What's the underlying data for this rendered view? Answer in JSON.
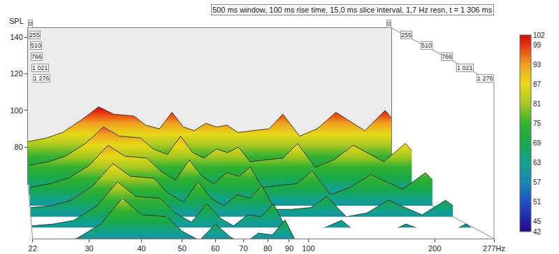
{
  "chart_data": {
    "type": "waterfall",
    "title": "500 ms window, 100 ms rise time, 15,0 ms slice interval, 1,7 Hz resn, t = 1 306 ms",
    "y_label": "SPL",
    "log": "x",
    "grid": false,
    "x": [
      22,
      25,
      28,
      32,
      36,
      40,
      46,
      50,
      55,
      60,
      65,
      70,
      76,
      82,
      88,
      95,
      105,
      118,
      130,
      146,
      165,
      188,
      230,
      265,
      277
    ],
    "xlim": [
      22,
      277
    ],
    "xticks": [
      22,
      30,
      40,
      50,
      60,
      70,
      80,
      90,
      100,
      200,
      {
        "value": 277,
        "label": "277Hz"
      }
    ],
    "ylim": [
      60,
      145
    ],
    "yticks": [
      80,
      100,
      120,
      140
    ],
    "zlim": [
      0,
      1276
    ],
    "zticks": [
      0,
      255,
      510,
      766,
      {
        "value": 1021,
        "label": "1 021"
      },
      {
        "value": 1276,
        "label": "1 276"
      }
    ],
    "clim": [
      42,
      102
    ],
    "cticks": [
      42,
      45,
      51,
      57,
      63,
      69,
      75,
      81,
      87,
      93,
      99,
      102
    ],
    "slices": [
      {
        "t": 0,
        "values": [
          83,
          85,
          88,
          95,
          102,
          98,
          97,
          92,
          90,
          99,
          91,
          89,
          93,
          91,
          92,
          88,
          89,
          90,
          98,
          86,
          90,
          99,
          89,
          100,
          96
        ]
      },
      {
        "t": 255,
        "values": [
          76,
          78,
          81,
          88,
          97,
          92,
          91,
          85,
          82,
          92,
          83,
          80,
          85,
          83,
          86,
          78,
          79,
          80,
          88,
          75,
          79,
          87,
          78,
          88,
          84
        ]
      },
      {
        "t": 510,
        "values": [
          70,
          72,
          75,
          82,
          93,
          87,
          86,
          79,
          74,
          85,
          76,
          72,
          78,
          76,
          81,
          70,
          71,
          72,
          79,
          66,
          70,
          77,
          69,
          78,
          74
        ]
      },
      {
        "t": 766,
        "values": [
          65,
          66,
          69,
          77,
          89,
          82,
          81,
          73,
          68,
          79,
          70,
          66,
          72,
          70,
          77,
          64,
          64,
          65,
          71,
          60,
          62,
          69,
          61,
          69,
          66
        ]
      },
      {
        "t": 1021,
        "values": [
          61,
          62,
          64,
          72,
          85,
          77,
          76,
          68,
          63,
          73,
          65,
          61,
          67,
          66,
          73,
          59,
          58,
          60,
          64,
          55,
          56,
          62,
          55,
          62,
          59
        ]
      },
      {
        "t": 1276,
        "values": [
          58,
          58,
          60,
          68,
          82,
          73,
          72,
          64,
          59,
          68,
          61,
          57,
          63,
          62,
          70,
          55,
          54,
          56,
          58,
          51,
          51,
          56,
          50,
          56,
          54
        ]
      }
    ]
  }
}
